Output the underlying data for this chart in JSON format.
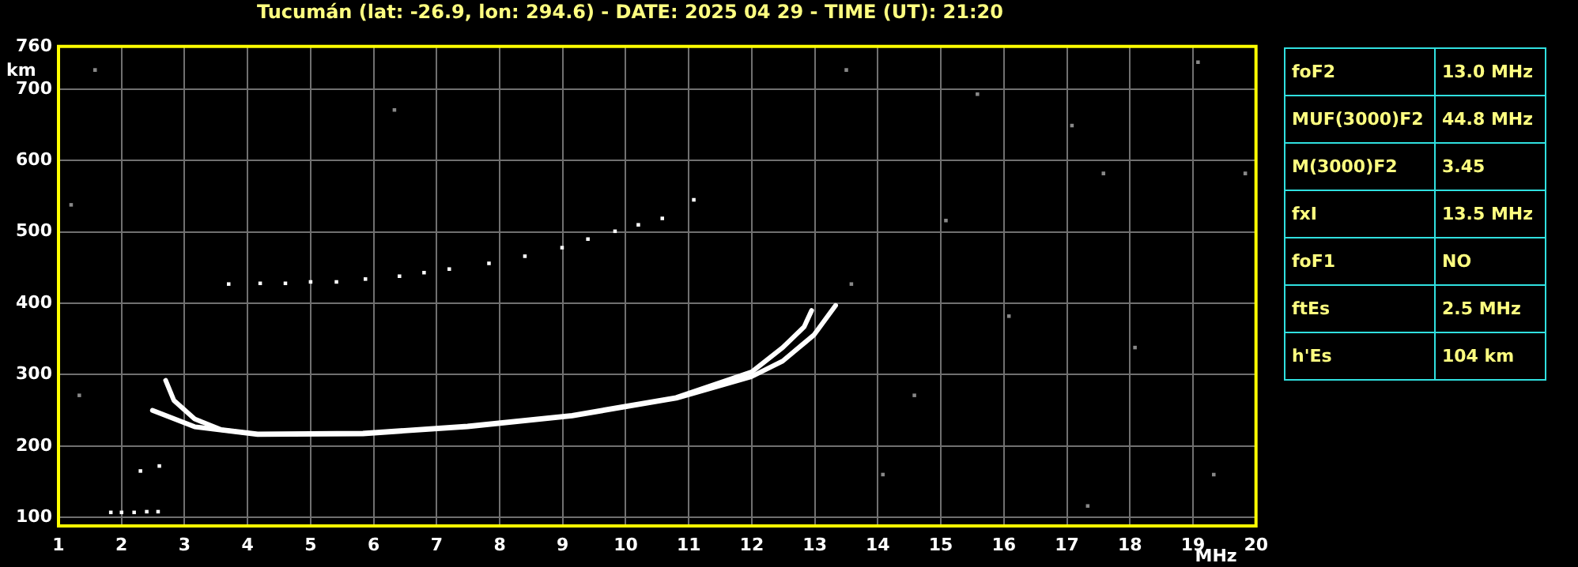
{
  "chart_data": [
    {
      "type": "scatter",
      "title": "Tucumán (lat: -26.9, lon: 294.6) - DATE: 2025 04 29 - TIME (UT): 21:20",
      "xlabel": "MHz",
      "ylabel": "km",
      "xlim": [
        1,
        20
      ],
      "xticks": [
        1,
        2,
        3,
        4,
        5,
        6,
        7,
        8,
        9,
        10,
        11,
        12,
        13,
        14,
        15,
        16,
        17,
        18,
        19,
        20
      ],
      "ylim": [
        88,
        760
      ],
      "yticks": [
        100,
        200,
        300,
        400,
        500,
        600,
        700,
        760
      ],
      "grid": true,
      "legend": false,
      "series": [
        {
          "type": "line",
          "marker": "none",
          "color": "#ffffff",
          "x": [
            2.49,
            3.16,
            4.16,
            5.83,
            7.49,
            9.15,
            10.8,
            11.99,
            12.49,
            12.99,
            13.33
          ],
          "values": [
            250,
            227,
            216,
            217,
            227,
            242,
            267,
            297,
            319,
            356,
            397
          ]
        },
        {
          "type": "line",
          "marker": "none",
          "color": "#ffffff",
          "x": [
            2.7,
            2.83,
            3.16,
            3.58,
            4.16,
            5.83,
            7.49,
            9.15,
            10.8,
            12,
            12.49,
            12.83,
            12.95
          ],
          "values": [
            292,
            264,
            238,
            223,
            217,
            218,
            228,
            243,
            268,
            304,
            338,
            367,
            390
          ]
        },
        {
          "marker": "square",
          "color": "#ffffff",
          "x": [
            3.7,
            4.2,
            4.6,
            5.0,
            5.41,
            5.87,
            6.41,
            6.8,
            7.2,
            7.83,
            8.4,
            8.99,
            9.4,
            9.83,
            10.2,
            10.58,
            11.08
          ],
          "values": [
            427,
            428,
            428,
            430,
            430,
            434,
            438,
            443,
            448,
            456,
            466,
            478,
            490,
            501,
            510,
            519,
            545
          ]
        },
        {
          "marker": "square",
          "color": "#ffffff",
          "x": [
            1.83,
            2.0,
            2.2,
            2.4,
            2.58,
            2.3,
            2.6
          ],
          "values": [
            107,
            107,
            107,
            108,
            108,
            165,
            172
          ]
        },
        {
          "marker": "square",
          "color": "#888888",
          "x": [
            13.5,
            14.58,
            16.08,
            17.58,
            19.08,
            19.33,
            17.33,
            15.08,
            15.58,
            13.58,
            1.2,
            1.58,
            1.33,
            6.33,
            17.08,
            19.83,
            14.08,
            18.08
          ],
          "values": [
            727,
            271,
            382,
            582,
            738,
            160,
            116,
            516,
            693,
            427,
            538,
            727,
            271,
            671,
            649,
            582,
            160,
            338
          ]
        }
      ]
    },
    {
      "type": "other",
      "annotations": [
        "foF2",
        "13.0 MHz",
        "MUF(3000)F2",
        "44.8 MHz",
        "M(3000)F2",
        "3.45",
        "fxI",
        "13.5 MHz",
        "foF1",
        "NO",
        "ftEs",
        "2.5 MHz",
        "h'Es",
        "104 km"
      ]
    }
  ]
}
